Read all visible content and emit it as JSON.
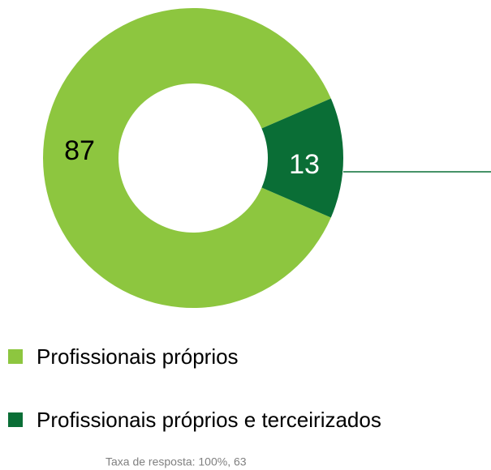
{
  "chart_data": {
    "type": "pie",
    "donut": true,
    "categories": [
      "Profissionais próprios",
      "Profissionais próprios e terceirizados"
    ],
    "values": [
      87,
      13
    ],
    "colors": [
      "#8dc63f",
      "#0a6e36"
    ],
    "label_colors": [
      "#000000",
      "#ffffff"
    ],
    "note": "Taxa de resposta: 100%, 63"
  }
}
